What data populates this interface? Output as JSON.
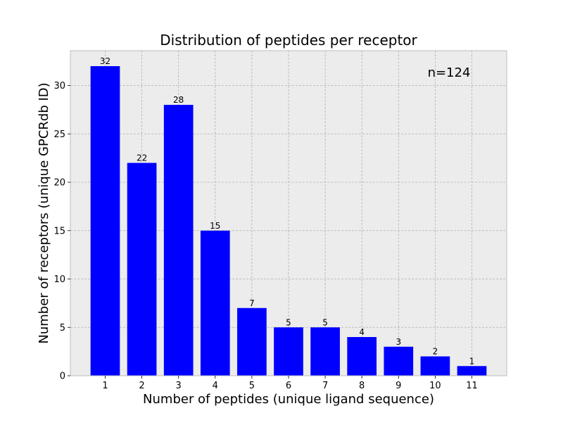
{
  "chart_data": {
    "type": "bar",
    "title": "Distribution of peptides per receptor",
    "xlabel": "Number of peptides (unique ligand sequence)",
    "ylabel": "Number of receptors (unique GPCRdb ID)",
    "categories": [
      "1",
      "2",
      "3",
      "4",
      "5",
      "6",
      "7",
      "8",
      "9",
      "10",
      "11"
    ],
    "values": [
      32,
      22,
      28,
      15,
      7,
      5,
      5,
      4,
      3,
      2,
      1
    ],
    "ylim": [
      0,
      33.6
    ],
    "yticks": [
      0,
      5,
      10,
      15,
      20,
      25,
      30
    ],
    "annotation": "n=124",
    "grid": true,
    "colors": {
      "bar": "#0000ff",
      "plot_background": "#ececec",
      "grid": "#b0b0b0",
      "axes_edge": "#bcbcbc",
      "text": "#000000"
    }
  }
}
